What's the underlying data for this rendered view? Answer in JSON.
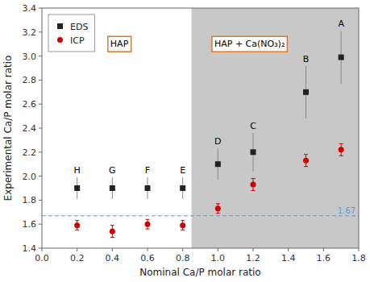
{
  "chart_data": {
    "type": "scatter",
    "xlabel": "Nominal Ca/P molar ratio",
    "ylabel": "Experimental Ca/P molar ratio",
    "xlim": [
      0.0,
      1.8
    ],
    "ylim": [
      1.4,
      3.4
    ],
    "xticks": [
      {
        "value": 0.0,
        "label": "0.0"
      },
      0.2,
      0.4,
      0.6,
      0.8,
      {
        "value": 1.0,
        "label": "1.0"
      },
      1.2,
      1.4,
      1.6,
      1.8
    ],
    "yticks": [
      1.4,
      1.6,
      1.8,
      {
        "value": 2.0,
        "label": "2.0"
      },
      2.2,
      2.4,
      2.6,
      2.8,
      {
        "value": 3.0,
        "label": "3.0"
      },
      3.2,
      3.4
    ],
    "grid": false,
    "legend": "upper left",
    "series": [
      {
        "name": "EDS",
        "color": "#222222",
        "marker": "square",
        "x": [
          0.2,
          0.4,
          0.6,
          0.8,
          1.0,
          1.2,
          1.5,
          1.7
        ],
        "values": [
          1.9,
          1.9,
          1.9,
          1.9,
          2.1,
          2.2,
          2.7,
          2.99
        ],
        "errors": [
          0.09,
          0.09,
          0.09,
          0.09,
          0.13,
          0.16,
          0.22,
          0.22
        ],
        "point_labels": [
          "H",
          "G",
          "F",
          "E",
          "D",
          "C",
          "B",
          "A"
        ]
      },
      {
        "name": "ICP",
        "color": "#cc0000",
        "marker": "circle",
        "x": [
          0.2,
          0.4,
          0.6,
          0.8,
          1.0,
          1.2,
          1.5,
          1.7
        ],
        "values": [
          1.59,
          1.54,
          1.6,
          1.59,
          1.73,
          1.93,
          2.13,
          2.22
        ],
        "errors": [
          0.04,
          0.05,
          0.04,
          0.04,
          0.04,
          0.05,
          0.05,
          0.05
        ]
      }
    ],
    "shaded_region": {
      "start": 0.85,
      "end": 1.8,
      "color": "#c8c8c8"
    },
    "reference_line": {
      "y": 1.67,
      "label": "1.67",
      "color": "#5b9bd5"
    },
    "annotations": [
      {
        "text": "HAP",
        "x": 0.44,
        "y": 3.1,
        "color": "#d4793a"
      },
      {
        "text": "HAP + Ca(NO₃)₂",
        "x": 1.18,
        "y": 3.1,
        "color": "#d4793a"
      }
    ]
  }
}
